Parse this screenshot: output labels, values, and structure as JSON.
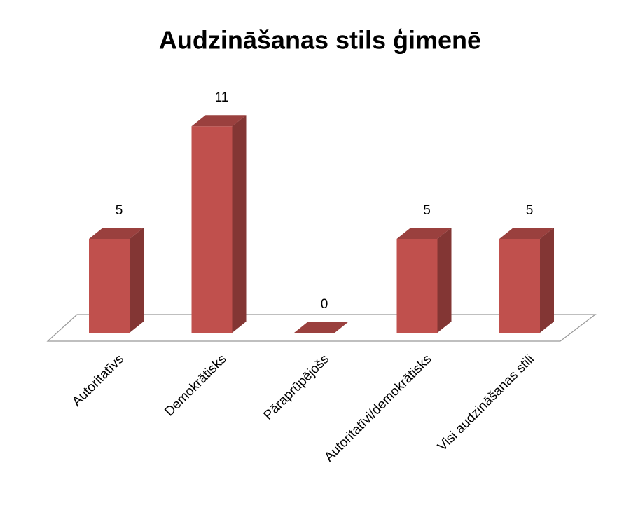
{
  "chart_data": {
    "type": "bar3d",
    "title": "Audzināšanas stils ģimenē",
    "categories": [
      "Autoritatīvs",
      "Demokrātisks",
      "Pāraprūpējošs",
      "Autoritatīvi/demokrātisks",
      "Visi audzināšanas stili"
    ],
    "values": [
      5,
      11,
      0,
      5,
      5
    ],
    "color": "#c0504d"
  }
}
